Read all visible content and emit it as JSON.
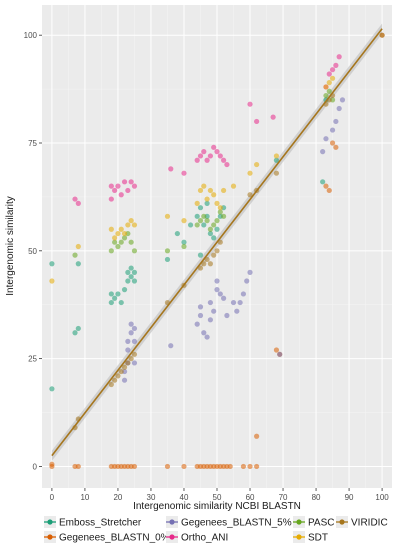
{
  "chart_data": {
    "type": "scatter",
    "title": "",
    "xlabel": "Intergenomic similarity NCBI BLASTN",
    "ylabel": "Intergenomic similarity",
    "xlim": [
      -3,
      103
    ],
    "ylim": [
      -5,
      107
    ],
    "x_ticks": [
      0,
      10,
      20,
      30,
      40,
      50,
      60,
      70,
      80,
      90,
      100
    ],
    "y_ticks": [
      0,
      25,
      50,
      75,
      100
    ],
    "grid": true,
    "legend_position": "bottom",
    "colors": {
      "Emboss_Stretcher": "#1b9e77",
      "Gegenees_BLASTN_0%": "#d95f02",
      "Gegenees_BLASTN_5%": "#7570b3",
      "Ortho_ANI": "#e7298a",
      "PASC": "#66a61e",
      "SDT": "#e6ab02",
      "VIRIDIC": "#a6761d",
      "panel_background": "#ebebeb",
      "grid": "#ffffff",
      "trend_line": "#a6761d",
      "trend_band": "#bdbdbd"
    },
    "trend_line": {
      "type": "linear",
      "x": [
        0,
        100
      ],
      "y": [
        2.5,
        101.5
      ]
    },
    "series": [
      {
        "name": "Emboss_Stretcher",
        "points": [
          [
            0,
            47
          ],
          [
            0,
            18
          ],
          [
            7,
            31
          ],
          [
            8,
            32
          ],
          [
            8,
            47
          ],
          [
            18,
            38
          ],
          [
            18,
            40
          ],
          [
            19,
            39
          ],
          [
            20,
            40
          ],
          [
            21,
            38
          ],
          [
            22,
            41
          ],
          [
            23,
            43
          ],
          [
            23,
            45
          ],
          [
            24,
            46
          ],
          [
            24,
            44
          ],
          [
            25,
            45
          ],
          [
            25,
            43
          ],
          [
            35,
            48
          ],
          [
            38,
            54
          ],
          [
            40,
            52
          ],
          [
            42,
            56
          ],
          [
            44,
            58
          ],
          [
            45,
            60
          ],
          [
            46,
            56
          ],
          [
            47,
            58
          ],
          [
            47,
            61
          ],
          [
            48,
            54
          ],
          [
            49,
            53
          ],
          [
            50,
            55
          ],
          [
            51,
            58
          ],
          [
            52,
            60
          ],
          [
            45,
            49
          ],
          [
            68,
            71
          ],
          [
            82,
            66
          ],
          [
            83,
            85
          ]
        ]
      },
      {
        "name": "Gegenees_BLASTN_0%",
        "points": [
          [
            0,
            0
          ],
          [
            0,
            0.5
          ],
          [
            7,
            0
          ],
          [
            8,
            0
          ],
          [
            18,
            0
          ],
          [
            19,
            0
          ],
          [
            20,
            0
          ],
          [
            21,
            0
          ],
          [
            22,
            0
          ],
          [
            23,
            0
          ],
          [
            24,
            0
          ],
          [
            25,
            0
          ],
          [
            35,
            0
          ],
          [
            40,
            0
          ],
          [
            44,
            0
          ],
          [
            45,
            0
          ],
          [
            46,
            0
          ],
          [
            47,
            0
          ],
          [
            48,
            0
          ],
          [
            49,
            0
          ],
          [
            50,
            0
          ],
          [
            51,
            0
          ],
          [
            52,
            0
          ],
          [
            53,
            0
          ],
          [
            54,
            0
          ],
          [
            58,
            0
          ],
          [
            60,
            0
          ],
          [
            62,
            7
          ],
          [
            62,
            0
          ],
          [
            68,
            27
          ],
          [
            69,
            26
          ],
          [
            83,
            65
          ],
          [
            84,
            64
          ],
          [
            85,
            75
          ],
          [
            86,
            74
          ],
          [
            100,
            100
          ]
        ]
      },
      {
        "name": "Gegenees_BLASTN_5%",
        "points": [
          [
            22,
            20
          ],
          [
            22,
            22
          ],
          [
            23,
            24
          ],
          [
            23,
            27
          ],
          [
            23,
            29
          ],
          [
            24,
            31
          ],
          [
            24,
            33
          ],
          [
            25,
            32
          ],
          [
            25,
            29
          ],
          [
            25,
            24
          ],
          [
            36,
            28
          ],
          [
            44,
            33
          ],
          [
            45,
            35
          ],
          [
            45,
            37
          ],
          [
            46,
            31
          ],
          [
            47,
            30
          ],
          [
            48,
            34
          ],
          [
            48,
            38
          ],
          [
            49,
            36
          ],
          [
            50,
            41
          ],
          [
            50,
            43
          ],
          [
            51,
            40
          ],
          [
            52,
            39
          ],
          [
            53,
            35
          ],
          [
            55,
            38
          ],
          [
            56,
            36
          ],
          [
            57,
            38
          ],
          [
            58,
            40
          ],
          [
            59,
            43
          ],
          [
            60,
            45
          ],
          [
            69,
            26
          ],
          [
            82,
            73
          ],
          [
            83,
            76
          ],
          [
            85,
            78
          ],
          [
            86,
            80
          ],
          [
            87,
            83
          ],
          [
            88,
            85
          ]
        ]
      },
      {
        "name": "Ortho_ANI",
        "points": [
          [
            7,
            62
          ],
          [
            8,
            61
          ],
          [
            18,
            62
          ],
          [
            18,
            65
          ],
          [
            19,
            64
          ],
          [
            20,
            65
          ],
          [
            21,
            63
          ],
          [
            22,
            66
          ],
          [
            23,
            64
          ],
          [
            24,
            66
          ],
          [
            25,
            65
          ],
          [
            36,
            69
          ],
          [
            40,
            68
          ],
          [
            44,
            71
          ],
          [
            45,
            72
          ],
          [
            46,
            73
          ],
          [
            47,
            71
          ],
          [
            48,
            72
          ],
          [
            49,
            74
          ],
          [
            50,
            73
          ],
          [
            51,
            72
          ],
          [
            52,
            71
          ],
          [
            53,
            70
          ],
          [
            60,
            84
          ],
          [
            62,
            80
          ],
          [
            67,
            81
          ],
          [
            83,
            88
          ],
          [
            84,
            91
          ],
          [
            85,
            92
          ],
          [
            86,
            93
          ],
          [
            87,
            95
          ]
        ]
      },
      {
        "name": "PASC",
        "points": [
          [
            7,
            49
          ],
          [
            18,
            50
          ],
          [
            19,
            52
          ],
          [
            20,
            51
          ],
          [
            21,
            52
          ],
          [
            22,
            53
          ],
          [
            23,
            54
          ],
          [
            24,
            52
          ],
          [
            25,
            50
          ],
          [
            35,
            50
          ],
          [
            40,
            51
          ],
          [
            44,
            56
          ],
          [
            45,
            57
          ],
          [
            46,
            58
          ],
          [
            47,
            57
          ],
          [
            48,
            55
          ],
          [
            49,
            56
          ],
          [
            50,
            57
          ],
          [
            51,
            59
          ],
          [
            52,
            58
          ],
          [
            83,
            86
          ],
          [
            84,
            87
          ],
          [
            85,
            85
          ]
        ]
      },
      {
        "name": "SDT",
        "points": [
          [
            0,
            43
          ],
          [
            8,
            51
          ],
          [
            18,
            55
          ],
          [
            19,
            53
          ],
          [
            20,
            54
          ],
          [
            21,
            55
          ],
          [
            22,
            54
          ],
          [
            23,
            56
          ],
          [
            24,
            57
          ],
          [
            25,
            56
          ],
          [
            35,
            58
          ],
          [
            40,
            57
          ],
          [
            44,
            61
          ],
          [
            45,
            64
          ],
          [
            46,
            65
          ],
          [
            47,
            62
          ],
          [
            48,
            64
          ],
          [
            49,
            63
          ],
          [
            50,
            61
          ],
          [
            51,
            60
          ],
          [
            52,
            64
          ],
          [
            55,
            65
          ],
          [
            60,
            68
          ],
          [
            62,
            70
          ],
          [
            68,
            72
          ],
          [
            83,
            88
          ],
          [
            84,
            89
          ],
          [
            85,
            90
          ]
        ]
      },
      {
        "name": "VIRIDIC",
        "points": [
          [
            7,
            9
          ],
          [
            8,
            11
          ],
          [
            18,
            19
          ],
          [
            19,
            20
          ],
          [
            20,
            21
          ],
          [
            21,
            22
          ],
          [
            22,
            23
          ],
          [
            23,
            24
          ],
          [
            24,
            25
          ],
          [
            25,
            26
          ],
          [
            35,
            38
          ],
          [
            40,
            42
          ],
          [
            45,
            46
          ],
          [
            46,
            47
          ],
          [
            47,
            48
          ],
          [
            48,
            47
          ],
          [
            49,
            49
          ],
          [
            50,
            50
          ],
          [
            51,
            52
          ],
          [
            60,
            63
          ],
          [
            62,
            64
          ],
          [
            68,
            68
          ],
          [
            83,
            84
          ],
          [
            84,
            85
          ],
          [
            85,
            86
          ],
          [
            100,
            100
          ]
        ]
      }
    ]
  }
}
